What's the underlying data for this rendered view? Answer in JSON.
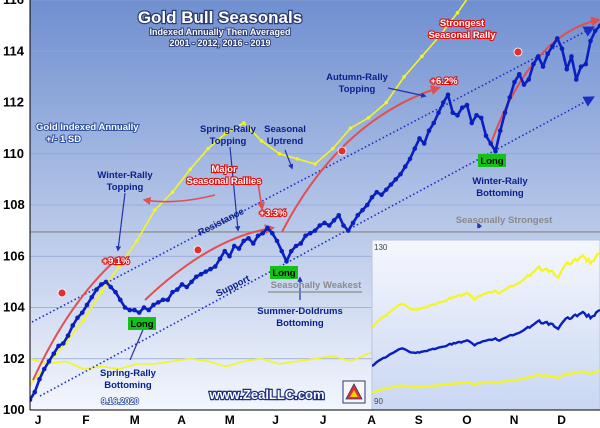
{
  "chart_data": {
    "type": "line",
    "title": "Gold Bull Seasonals",
    "subtitle_lines": [
      "Indexed Annually Then Averaged",
      "2001 - 2012, 2016 - 2019"
    ],
    "footer_site": "www.ZealLLC.com",
    "footer_date": "9.16.2020",
    "x_tick_labels": [
      "J",
      "F",
      "M",
      "A",
      "M",
      "J",
      "J",
      "A",
      "S",
      "O",
      "N",
      "D"
    ],
    "y_ticks": [
      100,
      102,
      104,
      106,
      108,
      110,
      112,
      114,
      116
    ],
    "ylim": [
      100,
      116
    ],
    "main_series": {
      "name": "Gold Indexed Annually",
      "x_months": [
        0,
        0.1,
        0.2,
        0.3,
        0.4,
        0.5,
        0.6,
        0.7,
        0.8,
        0.9,
        1.0,
        1.1,
        1.2,
        1.3,
        1.4,
        1.5,
        1.6,
        1.7,
        1.8,
        1.9,
        2.0,
        2.1,
        2.2,
        2.3,
        2.4,
        2.5,
        2.6,
        2.7,
        2.8,
        2.9,
        3.0,
        3.1,
        3.2,
        3.3,
        3.4,
        3.5,
        3.6,
        3.7,
        3.8,
        3.9,
        4.0,
        4.1,
        4.2,
        4.3,
        4.4,
        4.5,
        4.6,
        4.7,
        4.8,
        4.9,
        5.0,
        5.1,
        5.2,
        5.3,
        5.4,
        5.5,
        5.6,
        5.7,
        5.8,
        5.9,
        6.0,
        6.1,
        6.2,
        6.3,
        6.4,
        6.5,
        6.6,
        6.7,
        6.8,
        6.9,
        7.0,
        7.1,
        7.2,
        7.3,
        7.4,
        7.5,
        7.6,
        7.7,
        7.8,
        7.9,
        8.0,
        8.1,
        8.2,
        8.3,
        8.4,
        8.5,
        8.6,
        8.7,
        8.8,
        8.9,
        9.0,
        9.1,
        9.2,
        9.3,
        9.4,
        9.5,
        9.6,
        9.7,
        9.8,
        9.9,
        10.0,
        10.1,
        10.2,
        10.3,
        10.4,
        10.5,
        10.6,
        10.7,
        10.8,
        10.9,
        11.0,
        11.1,
        11.2,
        11.3,
        11.4,
        11.5,
        11.6,
        11.7,
        11.8,
        11.9,
        12.0
      ],
      "values": [
        100.4,
        100.7,
        101.2,
        101.6,
        101.9,
        102.2,
        102.5,
        102.6,
        102.9,
        103.3,
        103.6,
        103.8,
        104.1,
        104.4,
        104.7,
        104.9,
        105.0,
        104.8,
        104.6,
        104.3,
        104.0,
        103.9,
        103.9,
        103.8,
        104.0,
        103.9,
        104.1,
        104.2,
        104.3,
        104.3,
        104.6,
        104.7,
        104.9,
        104.8,
        105.0,
        105.2,
        105.3,
        105.4,
        105.5,
        105.6,
        105.9,
        106.2,
        106.0,
        106.4,
        106.3,
        106.6,
        106.7,
        106.5,
        106.8,
        106.9,
        107.1,
        106.9,
        106.6,
        106.2,
        105.8,
        106.2,
        106.4,
        106.5,
        106.8,
        106.9,
        107.0,
        107.2,
        107.3,
        107.2,
        107.4,
        107.6,
        107.2,
        107.0,
        107.3,
        107.6,
        107.8,
        108.0,
        108.3,
        108.5,
        108.4,
        108.6,
        108.8,
        109.0,
        109.2,
        109.5,
        109.8,
        110.2,
        110.6,
        110.4,
        110.9,
        111.2,
        111.6,
        112.0,
        112.3,
        111.6,
        111.5,
        111.8,
        111.9,
        111.2,
        111.5,
        111.4,
        110.7,
        110.4,
        110.1,
        110.9,
        111.6,
        112.2,
        112.8,
        113.1,
        112.7,
        112.9,
        113.5,
        113.8,
        113.4,
        113.9,
        114.2,
        114.5,
        114.1,
        113.3,
        113.8,
        112.9,
        113.4,
        113.5,
        114.4,
        114.8,
        115.0
      ]
    },
    "band": {
      "name": "+/- 1 SD",
      "upper_values": [
        101.0,
        101.8,
        102.6,
        103.5,
        104.6,
        105.6,
        106.6,
        107.8,
        108.5,
        109.4,
        110.2,
        110.8,
        111.2,
        110.5,
        110.0,
        109.8,
        109.6,
        110.2,
        111.0,
        111.4,
        112.0,
        113.0,
        113.8,
        114.6,
        115.5,
        116.5,
        117.0,
        117.5,
        117.8,
        118.0,
        118.2,
        118.3,
        118.5
      ],
      "lower_values": [
        102.0,
        101.8,
        101.9,
        101.6,
        101.7,
        101.6,
        101.8,
        101.8,
        101.9,
        102.0,
        101.9,
        101.7,
        101.9,
        102.0,
        101.8,
        101.9,
        102.0,
        102.1,
        101.9,
        102.2,
        102.3,
        102.2,
        102.4,
        102.2,
        102.3,
        102.4,
        102.2,
        102.3,
        102.4,
        102.5,
        102.6,
        102.5,
        102.6
      ]
    },
    "inset": {
      "y_ticks": [
        90,
        130
      ]
    },
    "threshold_line": 106.95
  },
  "annotations": {
    "legend_title": "Gold Indexed Annually",
    "legend_sd": "+/- 1 SD",
    "winter_rally_topping_1": "Winter-Rally",
    "winter_rally_topping_2": "Topping",
    "gain_9_1": "+9.1%",
    "spring_rally_topping_1": "Spring-Rally",
    "spring_rally_topping_2": "Topping",
    "seasonal_uptrend_1": "Seasonal",
    "seasonal_uptrend_2": "Uptrend",
    "major_seasonal_1": "Major",
    "major_seasonal_2": "Seasonal Rallies",
    "gain_3_3": "+3.3%",
    "autumn_rally_1": "Autumn-Rally",
    "autumn_rally_2": "Topping",
    "gain_6_2": "+6.2%",
    "strongest_1": "Strongest",
    "strongest_2": "Seasonal Rally",
    "resistance": "Resistance",
    "support": "Support",
    "seasonally_strongest": "Seasonally Strongest",
    "seasonally_weakest": "Seasonally Weakest",
    "long": "Long",
    "spring_rally_bottoming_1": "Spring-Rally",
    "spring_rally_bottoming_2": "Bottoming",
    "summer_doldrums_1": "Summer-Doldrums",
    "summer_doldrums_2": "Bottoming",
    "winter_rally_bottoming_1": "Winter-Rally",
    "winter_rally_bottoming_2": "Bottoming"
  },
  "colors": {
    "main": "#0a1fbf",
    "band": "#f5f520",
    "rally_arrows": "#e05050",
    "trend": "#1c2cc8",
    "long_badge": "#12c216"
  }
}
